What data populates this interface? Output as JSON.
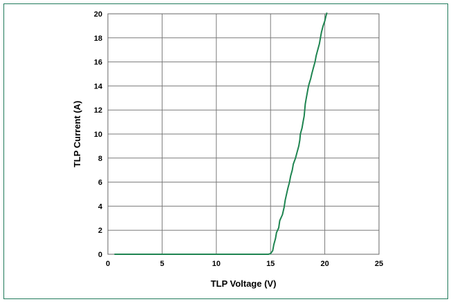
{
  "chart_data": {
    "type": "line",
    "title": "",
    "xlabel": "TLP Voltage (V)",
    "ylabel": "TLP Current (A)",
    "xlim": [
      0,
      25
    ],
    "ylim": [
      0,
      20
    ],
    "x_ticks": [
      "0",
      "5",
      "10",
      "15",
      "20",
      "25"
    ],
    "y_ticks": [
      "0",
      "2",
      "4",
      "6",
      "8",
      "10",
      "12",
      "14",
      "16",
      "18",
      "20"
    ],
    "grid": true,
    "legend": "none",
    "series": [
      {
        "color": "#1e8450",
        "x": [
          0.6,
          5,
          10,
          14.8,
          15.0,
          15.2,
          15.3,
          15.45,
          15.55,
          15.75,
          15.85,
          16.1,
          16.25,
          16.35,
          16.5,
          16.6,
          16.75,
          16.85,
          17.0,
          17.1,
          17.3,
          17.45,
          17.6,
          17.7,
          17.75,
          17.9,
          18.0,
          18.1,
          18.15,
          18.2,
          18.3,
          18.4,
          18.5,
          18.6,
          18.7,
          18.8,
          18.95,
          19.1,
          19.2,
          19.35,
          19.5,
          19.6,
          19.7,
          19.85,
          20.0,
          20.1,
          20.2
        ],
        "y": [
          0,
          0,
          0,
          0,
          0.05,
          0.3,
          0.8,
          1.3,
          1.8,
          2.2,
          2.8,
          3.3,
          3.9,
          4.5,
          5.1,
          5.5,
          6.0,
          6.5,
          7.0,
          7.5,
          8.0,
          8.5,
          9.0,
          9.5,
          10.0,
          10.5,
          11.0,
          11.5,
          12.0,
          12.5,
          13.0,
          13.5,
          14.0,
          14.3,
          14.6,
          15.0,
          15.5,
          16.0,
          16.5,
          17.0,
          17.5,
          18.0,
          18.5,
          19.0,
          19.4,
          19.8,
          20.1
        ]
      }
    ]
  }
}
